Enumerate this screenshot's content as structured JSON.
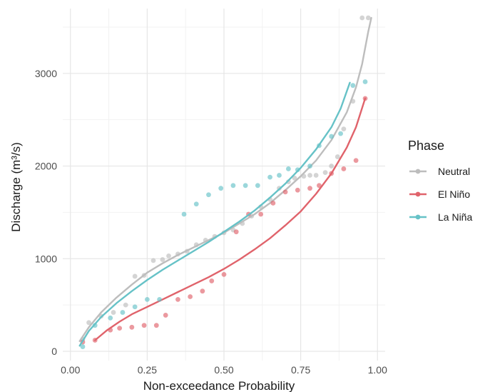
{
  "chart_data": {
    "type": "scatter",
    "xlabel": "Non-exceedance Probability",
    "ylabel": "Discharge (m³/s)",
    "xlim": [
      -0.025,
      1.025
    ],
    "ylim": [
      -100,
      3700
    ],
    "x_ticks": [
      0.0,
      0.25,
      0.5,
      0.75,
      1.0
    ],
    "x_tick_labels": [
      "0.00",
      "0.25",
      "0.50",
      "0.75",
      "1.00"
    ],
    "y_ticks": [
      0,
      1000,
      2000,
      3000
    ],
    "y_tick_labels": [
      "0",
      "1000",
      "2000",
      "3000"
    ],
    "grid": true,
    "legend": {
      "title": "Phase",
      "position": "right"
    },
    "series": [
      {
        "name": "Neutral",
        "color": "#bdbdbd",
        "points": [
          [
            0.04,
            130
          ],
          [
            0.06,
            310
          ],
          [
            0.1,
            380
          ],
          [
            0.14,
            420
          ],
          [
            0.18,
            500
          ],
          [
            0.21,
            810
          ],
          [
            0.24,
            820
          ],
          [
            0.27,
            980
          ],
          [
            0.3,
            990
          ],
          [
            0.32,
            1030
          ],
          [
            0.35,
            1050
          ],
          [
            0.38,
            1080
          ],
          [
            0.41,
            1150
          ],
          [
            0.44,
            1200
          ],
          [
            0.47,
            1240
          ],
          [
            0.5,
            1280
          ],
          [
            0.53,
            1310
          ],
          [
            0.56,
            1380
          ],
          [
            0.59,
            1460
          ],
          [
            0.62,
            1560
          ],
          [
            0.65,
            1640
          ],
          [
            0.68,
            1760
          ],
          [
            0.71,
            1830
          ],
          [
            0.73,
            1870
          ],
          [
            0.76,
            1890
          ],
          [
            0.78,
            1900
          ],
          [
            0.8,
            1900
          ],
          [
            0.83,
            1930
          ],
          [
            0.85,
            2000
          ],
          [
            0.87,
            2100
          ],
          [
            0.89,
            2400
          ],
          [
            0.92,
            2700
          ],
          [
            0.95,
            3600
          ],
          [
            0.97,
            3600
          ]
        ],
        "curve": [
          [
            0.03,
            110
          ],
          [
            0.06,
            260
          ],
          [
            0.1,
            420
          ],
          [
            0.15,
            580
          ],
          [
            0.2,
            720
          ],
          [
            0.25,
            850
          ],
          [
            0.3,
            950
          ],
          [
            0.35,
            1040
          ],
          [
            0.4,
            1120
          ],
          [
            0.45,
            1200
          ],
          [
            0.5,
            1280
          ],
          [
            0.55,
            1380
          ],
          [
            0.6,
            1480
          ],
          [
            0.65,
            1600
          ],
          [
            0.7,
            1740
          ],
          [
            0.75,
            1890
          ],
          [
            0.8,
            2060
          ],
          [
            0.85,
            2280
          ],
          [
            0.9,
            2580
          ],
          [
            0.93,
            2850
          ],
          [
            0.95,
            3100
          ],
          [
            0.97,
            3450
          ],
          [
            0.98,
            3600
          ]
        ]
      },
      {
        "name": "El Niño",
        "color": "#e0636b",
        "points": [
          [
            0.04,
            100
          ],
          [
            0.08,
            120
          ],
          [
            0.13,
            230
          ],
          [
            0.16,
            250
          ],
          [
            0.2,
            260
          ],
          [
            0.24,
            280
          ],
          [
            0.28,
            280
          ],
          [
            0.31,
            390
          ],
          [
            0.35,
            560
          ],
          [
            0.39,
            590
          ],
          [
            0.43,
            650
          ],
          [
            0.46,
            760
          ],
          [
            0.5,
            830
          ],
          [
            0.54,
            1290
          ],
          [
            0.58,
            1480
          ],
          [
            0.62,
            1480
          ],
          [
            0.66,
            1600
          ],
          [
            0.7,
            1720
          ],
          [
            0.74,
            1740
          ],
          [
            0.78,
            1760
          ],
          [
            0.81,
            1790
          ],
          [
            0.85,
            1920
          ],
          [
            0.89,
            1970
          ],
          [
            0.93,
            2060
          ],
          [
            0.96,
            2730
          ]
        ],
        "curve": [
          [
            0.08,
            120
          ],
          [
            0.12,
            230
          ],
          [
            0.16,
            320
          ],
          [
            0.2,
            400
          ],
          [
            0.25,
            480
          ],
          [
            0.3,
            560
          ],
          [
            0.35,
            640
          ],
          [
            0.4,
            720
          ],
          [
            0.45,
            800
          ],
          [
            0.5,
            890
          ],
          [
            0.55,
            990
          ],
          [
            0.6,
            1100
          ],
          [
            0.65,
            1220
          ],
          [
            0.7,
            1360
          ],
          [
            0.75,
            1510
          ],
          [
            0.8,
            1700
          ],
          [
            0.85,
            1920
          ],
          [
            0.9,
            2200
          ],
          [
            0.93,
            2420
          ],
          [
            0.96,
            2730
          ]
        ]
      },
      {
        "name": "La Niña",
        "color": "#66c2c7",
        "points": [
          [
            0.04,
            50
          ],
          [
            0.08,
            280
          ],
          [
            0.13,
            360
          ],
          [
            0.17,
            420
          ],
          [
            0.21,
            480
          ],
          [
            0.25,
            560
          ],
          [
            0.29,
            560
          ],
          [
            0.37,
            1480
          ],
          [
            0.41,
            1590
          ],
          [
            0.45,
            1690
          ],
          [
            0.49,
            1760
          ],
          [
            0.53,
            1790
          ],
          [
            0.57,
            1790
          ],
          [
            0.61,
            1790
          ],
          [
            0.65,
            1880
          ],
          [
            0.68,
            1900
          ],
          [
            0.71,
            1970
          ],
          [
            0.74,
            1960
          ],
          [
            0.78,
            2000
          ],
          [
            0.81,
            2220
          ],
          [
            0.85,
            2320
          ],
          [
            0.88,
            2350
          ],
          [
            0.92,
            2870
          ],
          [
            0.96,
            2910
          ]
        ],
        "curve": [
          [
            0.03,
            60
          ],
          [
            0.06,
            220
          ],
          [
            0.1,
            370
          ],
          [
            0.15,
            520
          ],
          [
            0.2,
            650
          ],
          [
            0.25,
            770
          ],
          [
            0.3,
            880
          ],
          [
            0.35,
            980
          ],
          [
            0.4,
            1080
          ],
          [
            0.45,
            1180
          ],
          [
            0.5,
            1290
          ],
          [
            0.55,
            1400
          ],
          [
            0.6,
            1520
          ],
          [
            0.65,
            1660
          ],
          [
            0.7,
            1810
          ],
          [
            0.75,
            1980
          ],
          [
            0.8,
            2180
          ],
          [
            0.85,
            2420
          ],
          [
            0.88,
            2620
          ],
          [
            0.91,
            2900
          ]
        ]
      }
    ]
  }
}
